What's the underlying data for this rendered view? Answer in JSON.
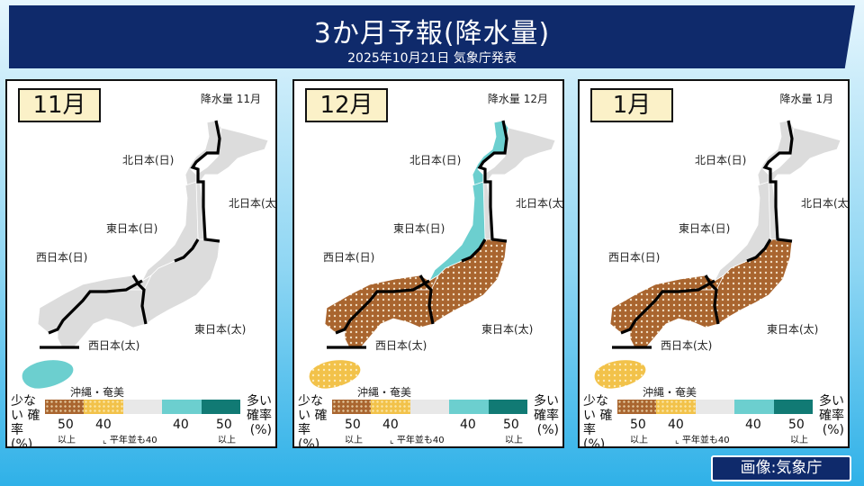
{
  "header": {
    "title": "3か月予報(降水量)",
    "subtitle": "2025年10月21日 気象庁発表"
  },
  "panels": [
    {
      "month": "11月",
      "map_title": "降水量 11月",
      "regions": [
        "北日本(日)",
        "北日本(太)",
        "東日本(日)",
        "西日本(日)",
        "東日本(太)",
        "西日本(太)",
        "沖縄・奄美"
      ],
      "categories": {
        "北日本(日)": "normal",
        "北日本(太)": "normal",
        "東日本(日)": "normal",
        "東日本(太)": "normal",
        "西日本(日)": "normal",
        "西日本(太)": "normal",
        "沖縄・奄美": "more40"
      }
    },
    {
      "month": "12月",
      "map_title": "降水量 12月",
      "regions": [
        "北日本(日)",
        "北日本(太)",
        "東日本(日)",
        "西日本(日)",
        "東日本(太)",
        "西日本(太)",
        "沖縄・奄美"
      ],
      "categories": {
        "北日本(日)": "more40",
        "北日本(太)": "normal",
        "東日本(日)": "more40",
        "東日本(太)": "less50",
        "西日本(日)": "less50",
        "西日本(太)": "less50",
        "沖縄・奄美": "less40"
      }
    },
    {
      "month": "1月",
      "map_title": "降水量 1月",
      "regions": [
        "北日本(日)",
        "北日本(太)",
        "東日本(日)",
        "西日本(日)",
        "東日本(太)",
        "西日本(太)",
        "沖縄・奄美"
      ],
      "categories": {
        "北日本(日)": "normal",
        "北日本(太)": "normal",
        "東日本(日)": "normal",
        "東日本(太)": "less50",
        "西日本(日)": "less50",
        "西日本(太)": "less50",
        "沖縄・奄美": "less40"
      }
    }
  ],
  "legend": {
    "few_label": "少ない 確率 (%)",
    "many_label": "多い 確率 (%)",
    "ticks": [
      "50",
      "40",
      "40",
      "50"
    ],
    "ijo": "以上",
    "heinen_note": "平年並も40",
    "colors": {
      "less50": "#a9652f",
      "less40": "#f2c24a",
      "normal": "#e8e8e8",
      "more40": "#6ccfcf",
      "more50": "#117a74"
    }
  },
  "credit": "画像:気象庁"
}
